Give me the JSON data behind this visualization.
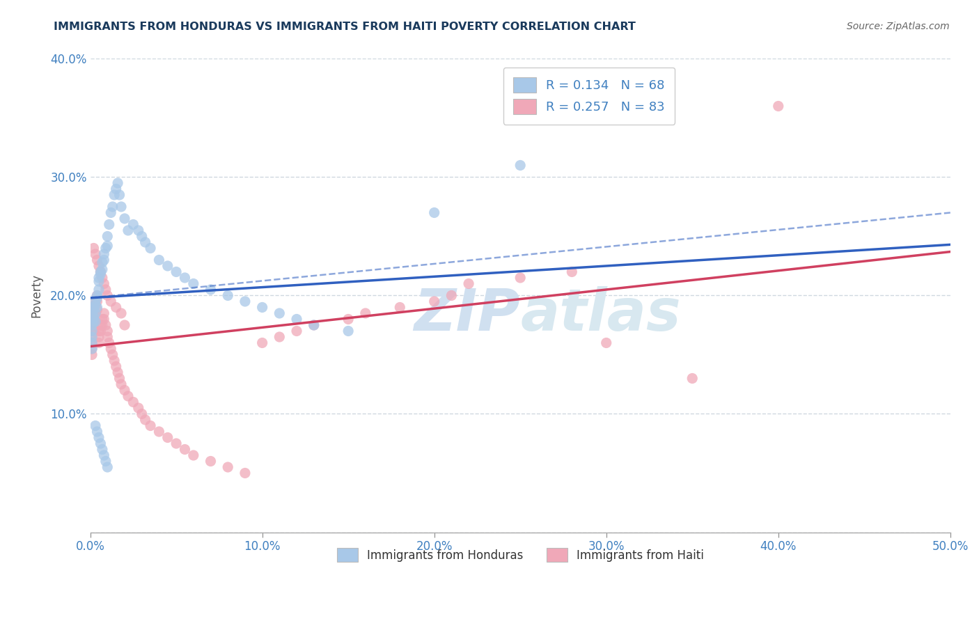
{
  "title": "IMMIGRANTS FROM HONDURAS VS IMMIGRANTS FROM HAITI POVERTY CORRELATION CHART",
  "source": "Source: ZipAtlas.com",
  "ylabel": "Poverty",
  "xlim": [
    0,
    0.5
  ],
  "ylim": [
    0,
    0.4
  ],
  "xticks": [
    0.0,
    0.1,
    0.2,
    0.3,
    0.4,
    0.5
  ],
  "xtick_labels": [
    "0.0%",
    "10.0%",
    "20.0%",
    "30.0%",
    "40.0%",
    "50.0%"
  ],
  "yticks": [
    0.0,
    0.1,
    0.2,
    0.3,
    0.4
  ],
  "ytick_labels": [
    "",
    "10.0%",
    "20.0%",
    "30.0%",
    "40.0%"
  ],
  "legend1_label": "R = 0.134   N = 68",
  "legend2_label": "R = 0.257   N = 83",
  "legend_bottom1": "Immigrants from Honduras",
  "legend_bottom2": "Immigrants from Haiti",
  "blue_color": "#a8c8e8",
  "pink_color": "#f0a8b8",
  "line_blue_color": "#3060c0",
  "line_pink_color": "#d04060",
  "axis_label_color": "#4080c0",
  "title_color": "#1a3a5c",
  "watermark_color": "#d0e0f0",
  "background_color": "#ffffff",
  "grid_color": "#d0d8e0",
  "blue_line_x0": 0.0,
  "blue_line_y0": 0.198,
  "blue_line_x1": 0.5,
  "blue_line_y1": 0.243,
  "pink_line_x0": 0.0,
  "pink_line_y0": 0.157,
  "pink_line_x1": 0.5,
  "pink_line_y1": 0.237,
  "dash_line_x0": 0.0,
  "dash_line_y0": 0.198,
  "dash_line_x1": 0.5,
  "dash_line_y1": 0.27,
  "blue_scatter_x": [
    0.001,
    0.001,
    0.001,
    0.001,
    0.001,
    0.001,
    0.001,
    0.002,
    0.002,
    0.002,
    0.002,
    0.003,
    0.003,
    0.003,
    0.003,
    0.004,
    0.004,
    0.004,
    0.005,
    0.005,
    0.005,
    0.006,
    0.006,
    0.007,
    0.007,
    0.008,
    0.008,
    0.009,
    0.01,
    0.01,
    0.011,
    0.012,
    0.013,
    0.014,
    0.015,
    0.016,
    0.017,
    0.018,
    0.02,
    0.022,
    0.025,
    0.028,
    0.03,
    0.032,
    0.035,
    0.04,
    0.045,
    0.05,
    0.055,
    0.06,
    0.07,
    0.08,
    0.09,
    0.1,
    0.11,
    0.12,
    0.13,
    0.15,
    0.2,
    0.25,
    0.003,
    0.004,
    0.005,
    0.006,
    0.007,
    0.008,
    0.009,
    0.01
  ],
  "blue_scatter_y": [
    0.185,
    0.18,
    0.175,
    0.17,
    0.165,
    0.16,
    0.155,
    0.19,
    0.188,
    0.182,
    0.178,
    0.195,
    0.192,
    0.185,
    0.178,
    0.2,
    0.198,
    0.19,
    0.215,
    0.212,
    0.205,
    0.22,
    0.218,
    0.228,
    0.222,
    0.235,
    0.23,
    0.24,
    0.25,
    0.242,
    0.26,
    0.27,
    0.275,
    0.285,
    0.29,
    0.295,
    0.285,
    0.275,
    0.265,
    0.255,
    0.26,
    0.255,
    0.25,
    0.245,
    0.24,
    0.23,
    0.225,
    0.22,
    0.215,
    0.21,
    0.205,
    0.2,
    0.195,
    0.19,
    0.185,
    0.18,
    0.175,
    0.17,
    0.27,
    0.31,
    0.09,
    0.085,
    0.08,
    0.075,
    0.07,
    0.065,
    0.06,
    0.055
  ],
  "pink_scatter_x": [
    0.001,
    0.001,
    0.001,
    0.001,
    0.001,
    0.001,
    0.001,
    0.001,
    0.002,
    0.002,
    0.002,
    0.002,
    0.002,
    0.003,
    0.003,
    0.003,
    0.003,
    0.004,
    0.004,
    0.004,
    0.005,
    0.005,
    0.005,
    0.006,
    0.006,
    0.007,
    0.007,
    0.008,
    0.008,
    0.009,
    0.01,
    0.01,
    0.011,
    0.012,
    0.013,
    0.014,
    0.015,
    0.016,
    0.017,
    0.018,
    0.02,
    0.022,
    0.025,
    0.028,
    0.03,
    0.032,
    0.035,
    0.04,
    0.045,
    0.05,
    0.055,
    0.06,
    0.07,
    0.08,
    0.09,
    0.1,
    0.11,
    0.12,
    0.13,
    0.15,
    0.16,
    0.18,
    0.2,
    0.21,
    0.22,
    0.25,
    0.28,
    0.3,
    0.35,
    0.4,
    0.002,
    0.003,
    0.004,
    0.005,
    0.006,
    0.007,
    0.008,
    0.009,
    0.01,
    0.012,
    0.015,
    0.018,
    0.02
  ],
  "pink_scatter_y": [
    0.185,
    0.18,
    0.175,
    0.17,
    0.165,
    0.16,
    0.155,
    0.15,
    0.19,
    0.185,
    0.18,
    0.175,
    0.17,
    0.195,
    0.192,
    0.185,
    0.178,
    0.2,
    0.195,
    0.188,
    0.17,
    0.165,
    0.16,
    0.175,
    0.17,
    0.18,
    0.175,
    0.185,
    0.18,
    0.175,
    0.17,
    0.165,
    0.16,
    0.155,
    0.15,
    0.145,
    0.14,
    0.135,
    0.13,
    0.125,
    0.12,
    0.115,
    0.11,
    0.105,
    0.1,
    0.095,
    0.09,
    0.085,
    0.08,
    0.075,
    0.07,
    0.065,
    0.06,
    0.055,
    0.05,
    0.16,
    0.165,
    0.17,
    0.175,
    0.18,
    0.185,
    0.19,
    0.195,
    0.2,
    0.21,
    0.215,
    0.22,
    0.16,
    0.13,
    0.36,
    0.24,
    0.235,
    0.23,
    0.225,
    0.22,
    0.215,
    0.21,
    0.205,
    0.2,
    0.195,
    0.19,
    0.185,
    0.175
  ]
}
